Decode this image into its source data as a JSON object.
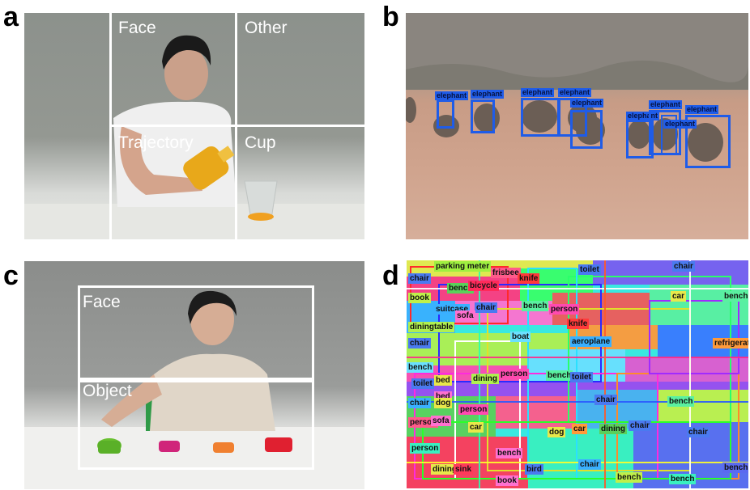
{
  "panel_labels": {
    "a": "a",
    "b": "b",
    "c": "c",
    "d": "d"
  },
  "panel_a": {
    "grid_labels": [
      "Face",
      "Other",
      "Trajectory",
      "Cup"
    ]
  },
  "panel_b": {
    "detections": [
      "elephant",
      "elephant",
      "elephant",
      "elephant",
      "elephant",
      "elephant",
      "elephant",
      "elephant",
      "elephant"
    ]
  },
  "panel_c": {
    "region_labels": [
      "Face",
      "Object"
    ]
  },
  "panel_d": {
    "labels": [
      "parking meter",
      "frisbee",
      "toilet",
      "chair",
      "chair",
      "bench",
      "bicycle",
      "knife",
      "book",
      "chair",
      "suitcase",
      "sofa",
      "bench",
      "person",
      "car",
      "bench",
      "knife",
      "diningtable",
      "boat",
      "aeroplane",
      "refrigerator",
      "chair",
      "bed",
      "bench",
      "person",
      "bench",
      "toilet",
      "toilet",
      "bed",
      "dining",
      "chair",
      "dog",
      "person",
      "chair",
      "bench",
      "person",
      "sofa",
      "car",
      "dog",
      "car",
      "chair",
      "dining",
      "person",
      "bench",
      "bird",
      "chair",
      "chair",
      "dining",
      "bench",
      "bench",
      "sink",
      "book",
      "bench"
    ]
  },
  "colors": {
    "detection_blue": "#1f5ce8",
    "grid_white": "#ffffff"
  }
}
